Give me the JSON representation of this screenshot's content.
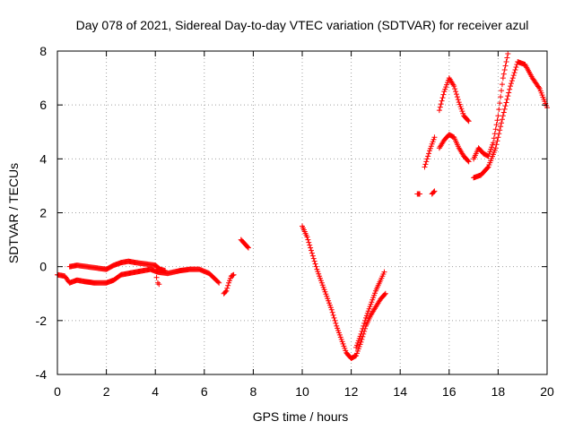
{
  "chart_data": {
    "type": "scatter",
    "title": "Day 078 of 2021, Sidereal Day-to-day VTEC variation (SDTVAR) for receiver azul",
    "xlabel": "GPS time / hours",
    "ylabel": "SDTVAR / TECUs",
    "xlim": [
      0,
      20
    ],
    "ylim": [
      -4,
      8
    ],
    "xticks": [
      0,
      2,
      4,
      6,
      8,
      10,
      12,
      14,
      16,
      18,
      20
    ],
    "yticks": [
      -4,
      -2,
      0,
      2,
      4,
      6,
      8
    ],
    "grid": true,
    "marker": "+",
    "color": "#ff0000",
    "series": [
      {
        "name": "SDTVAR",
        "segments": [
          [
            [
              0.0,
              -0.3
            ],
            [
              0.3,
              -0.35
            ],
            [
              0.5,
              -0.6
            ],
            [
              0.8,
              -0.5
            ],
            [
              1.1,
              -0.55
            ],
            [
              1.5,
              -0.6
            ],
            [
              2.0,
              -0.6
            ],
            [
              2.3,
              -0.5
            ],
            [
              2.6,
              -0.3
            ],
            [
              2.9,
              -0.25
            ],
            [
              3.2,
              -0.2
            ],
            [
              3.5,
              -0.15
            ],
            [
              3.8,
              -0.1
            ],
            [
              4.1,
              -0.2
            ],
            [
              4.5,
              -0.25
            ],
            [
              5.0,
              -0.15
            ],
            [
              5.4,
              -0.1
            ],
            [
              5.8,
              -0.1
            ],
            [
              6.2,
              -0.25
            ],
            [
              6.6,
              -0.6
            ]
          ],
          [
            [
              0.5,
              0.0
            ],
            [
              0.8,
              0.05
            ],
            [
              1.2,
              0.0
            ],
            [
              1.6,
              -0.05
            ],
            [
              2.0,
              -0.1
            ],
            [
              2.3,
              0.05
            ],
            [
              2.6,
              0.15
            ],
            [
              2.9,
              0.2
            ],
            [
              3.2,
              0.15
            ],
            [
              3.6,
              0.1
            ],
            [
              4.0,
              0.05
            ],
            [
              4.2,
              -0.1
            ],
            [
              4.4,
              -0.15
            ]
          ],
          [
            [
              4.05,
              -0.4
            ],
            [
              4.1,
              -0.6
            ],
            [
              4.15,
              -0.65
            ]
          ],
          [
            [
              6.8,
              -1.0
            ],
            [
              6.9,
              -0.9
            ],
            [
              7.0,
              -0.6
            ],
            [
              7.1,
              -0.35
            ],
            [
              7.2,
              -0.3
            ]
          ],
          [
            [
              7.5,
              1.0
            ],
            [
              7.6,
              0.9
            ],
            [
              7.7,
              0.8
            ],
            [
              7.8,
              0.7
            ]
          ],
          [
            [
              10.0,
              1.5
            ],
            [
              10.2,
              1.1
            ],
            [
              10.4,
              0.5
            ],
            [
              10.6,
              -0.1
            ],
            [
              10.8,
              -0.6
            ],
            [
              11.0,
              -1.1
            ],
            [
              11.2,
              -1.6
            ],
            [
              11.4,
              -2.2
            ],
            [
              11.6,
              -2.7
            ],
            [
              11.8,
              -3.2
            ],
            [
              12.0,
              -3.4
            ],
            [
              12.2,
              -3.3
            ],
            [
              12.4,
              -2.8
            ],
            [
              12.6,
              -2.2
            ],
            [
              12.8,
              -1.8
            ],
            [
              13.0,
              -1.5
            ],
            [
              13.2,
              -1.2
            ],
            [
              13.4,
              -1.0
            ]
          ],
          [
            [
              12.2,
              -3.0
            ],
            [
              12.4,
              -2.5
            ],
            [
              12.6,
              -1.9
            ],
            [
              12.8,
              -1.4
            ],
            [
              13.0,
              -0.9
            ],
            [
              13.2,
              -0.5
            ],
            [
              13.35,
              -0.2
            ]
          ],
          [
            [
              14.7,
              2.7
            ],
            [
              14.8,
              2.7
            ]
          ],
          [
            [
              15.0,
              3.7
            ],
            [
              15.2,
              4.3
            ],
            [
              15.4,
              4.8
            ]
          ],
          [
            [
              15.3,
              2.7
            ],
            [
              15.4,
              2.8
            ]
          ],
          [
            [
              15.6,
              4.4
            ],
            [
              15.8,
              4.7
            ],
            [
              16.0,
              4.9
            ],
            [
              16.2,
              4.8
            ],
            [
              16.4,
              4.4
            ],
            [
              16.6,
              4.1
            ],
            [
              16.8,
              3.9
            ]
          ],
          [
            [
              15.6,
              5.8
            ],
            [
              15.8,
              6.5
            ],
            [
              16.0,
              7.0
            ],
            [
              16.2,
              6.7
            ],
            [
              16.4,
              6.1
            ],
            [
              16.6,
              5.6
            ],
            [
              16.8,
              5.4
            ]
          ],
          [
            [
              17.0,
              4.0
            ],
            [
              17.2,
              4.4
            ],
            [
              17.4,
              4.2
            ],
            [
              17.6,
              4.1
            ],
            [
              17.8,
              4.6
            ],
            [
              18.0,
              5.6
            ],
            [
              18.2,
              7.0
            ],
            [
              18.4,
              7.9
            ]
          ],
          [
            [
              17.0,
              3.3
            ],
            [
              17.3,
              3.4
            ],
            [
              17.6,
              3.7
            ],
            [
              17.9,
              4.4
            ],
            [
              18.2,
              5.6
            ],
            [
              18.5,
              6.7
            ],
            [
              18.8,
              7.6
            ],
            [
              19.1,
              7.5
            ],
            [
              19.4,
              7.0
            ],
            [
              19.7,
              6.6
            ],
            [
              20.0,
              5.9
            ]
          ]
        ]
      }
    ]
  }
}
